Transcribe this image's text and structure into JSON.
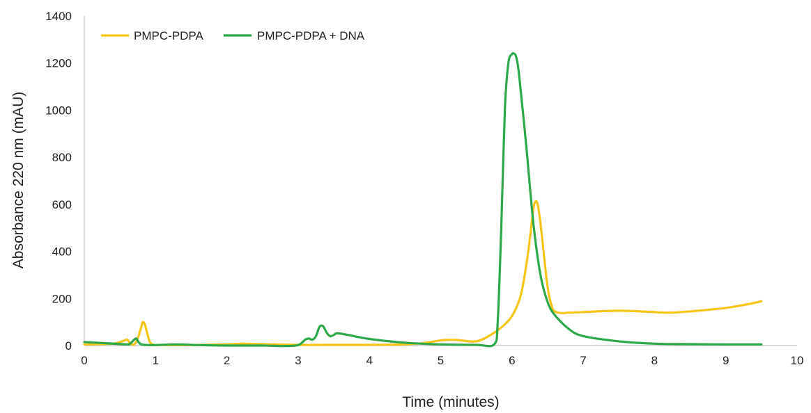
{
  "chart_data": {
    "type": "line",
    "title": "",
    "xlabel": "Time (minutes)",
    "ylabel": "Absorbance 220 nm (mAU)",
    "xlim": [
      0,
      10
    ],
    "ylim": [
      0,
      1400
    ],
    "xticks": [
      0,
      1,
      2,
      3,
      4,
      5,
      6,
      7,
      8,
      9,
      10
    ],
    "yticks": [
      0,
      200,
      400,
      600,
      800,
      1000,
      1200,
      1400
    ],
    "grid": false,
    "legend_position": "top-left",
    "series": [
      {
        "name": "PMPC-PDPA",
        "color": "#F5C518",
        "x": [
          0,
          0.4,
          0.55,
          0.6,
          0.65,
          0.7,
          0.75,
          0.8,
          0.82,
          0.85,
          0.88,
          0.92,
          0.97,
          1.05,
          1.5,
          2.0,
          2.2,
          2.5,
          3.0,
          3.5,
          4.0,
          4.5,
          4.8,
          5.0,
          5.2,
          5.4,
          5.5,
          5.6,
          5.7,
          5.8,
          5.9,
          6.0,
          6.1,
          6.15,
          6.2,
          6.25,
          6.3,
          6.33,
          6.36,
          6.4,
          6.45,
          6.5,
          6.55,
          6.6,
          6.7,
          6.8,
          7.0,
          7.5,
          8.0,
          8.2,
          8.5,
          9.0,
          9.3,
          9.5
        ],
        "y": [
          5,
          8,
          20,
          25,
          8,
          5,
          30,
          80,
          100,
          90,
          55,
          15,
          3,
          2,
          2,
          5,
          8,
          6,
          3,
          3,
          3,
          5,
          12,
          22,
          24,
          18,
          18,
          28,
          45,
          65,
          90,
          125,
          190,
          250,
          340,
          450,
          580,
          612,
          600,
          520,
          380,
          250,
          175,
          145,
          138,
          140,
          142,
          148,
          142,
          140,
          145,
          160,
          175,
          188
        ]
      },
      {
        "name": "PMPC-PDPA + DNA",
        "color": "#2EA84A",
        "x": [
          0,
          0.3,
          0.6,
          0.65,
          0.7,
          0.73,
          0.76,
          0.8,
          0.9,
          1.0,
          1.3,
          1.6,
          2.0,
          2.5,
          2.8,
          3.0,
          3.1,
          3.15,
          3.2,
          3.25,
          3.3,
          3.35,
          3.4,
          3.45,
          3.5,
          3.55,
          3.7,
          4.0,
          4.5,
          5.0,
          5.5,
          5.75,
          5.8,
          5.85,
          5.9,
          5.95,
          6.0,
          6.03,
          6.06,
          6.1,
          6.2,
          6.3,
          6.4,
          6.5,
          6.6,
          6.8,
          7.0,
          7.5,
          8.0,
          8.5,
          9.0,
          9.5
        ],
        "y": [
          15,
          10,
          5,
          10,
          25,
          30,
          15,
          5,
          2,
          2,
          5,
          2,
          0,
          0,
          -2,
          2,
          25,
          30,
          25,
          40,
          80,
          82,
          55,
          40,
          45,
          52,
          45,
          28,
          12,
          5,
          3,
          5,
          100,
          500,
          1000,
          1200,
          1238,
          1240,
          1225,
          1150,
          850,
          520,
          300,
          185,
          130,
          70,
          40,
          18,
          8,
          6,
          5,
          5
        ]
      }
    ]
  }
}
